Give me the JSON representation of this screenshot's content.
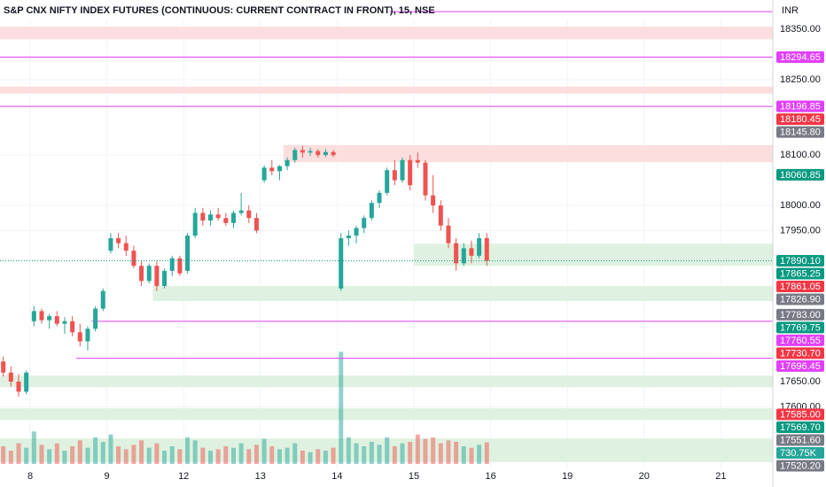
{
  "chart_data": {
    "type": "candlestick",
    "title": "S&P CNX NIFTY INDEX FUTURES (CONTINUOUS: CURRENT CONTRACT IN FRONT), 15, NSE",
    "currency": "INR",
    "ylim": [
      17480,
      18410
    ],
    "yticks": [
      {
        "value": 18350,
        "label": "18350.00"
      },
      {
        "value": 18250,
        "label": "18250.00"
      },
      {
        "value": 18100,
        "label": "18100.00"
      },
      {
        "value": 18000,
        "label": "18000.00"
      },
      {
        "value": 17950,
        "label": "17950.00"
      },
      {
        "value": 17650,
        "label": "17650.00"
      },
      {
        "value": 17600,
        "label": "17600.00"
      }
    ],
    "days": [
      "8",
      "9",
      "12",
      "13",
      "14",
      "15",
      "16",
      "19",
      "20",
      "21"
    ],
    "up_color": "#26a69a",
    "down_color": "#ef5350",
    "candles": [
      [
        17690,
        17700,
        17660,
        17668
      ],
      [
        17668,
        17680,
        17640,
        17650
      ],
      [
        17650,
        17665,
        17620,
        17630
      ],
      [
        17630,
        17672,
        17625,
        17668
      ],
      [
        17770,
        17800,
        17760,
        17790
      ],
      [
        17790,
        17795,
        17765,
        17772
      ],
      [
        17772,
        17785,
        17755,
        17780
      ],
      [
        17780,
        17790,
        17760,
        17765
      ],
      [
        17765,
        17778,
        17745,
        17770
      ],
      [
        17770,
        17780,
        17740,
        17748
      ],
      [
        17748,
        17765,
        17720,
        17730
      ],
      [
        17730,
        17760,
        17712,
        17755
      ],
      [
        17755,
        17800,
        17750,
        17795
      ],
      [
        17795,
        17835,
        17790,
        17830
      ],
      [
        17910,
        17945,
        17905,
        17935
      ],
      [
        17935,
        17945,
        17915,
        17925
      ],
      [
        17925,
        17940,
        17900,
        17910
      ],
      [
        17910,
        17920,
        17875,
        17880
      ],
      [
        17880,
        17890,
        17840,
        17850
      ],
      [
        17850,
        17885,
        17845,
        17880
      ],
      [
        17880,
        17890,
        17830,
        17840
      ],
      [
        17840,
        17875,
        17835,
        17870
      ],
      [
        17870,
        17900,
        17860,
        17895
      ],
      [
        17895,
        17900,
        17860,
        17865
      ],
      [
        17870,
        17945,
        17865,
        17940
      ],
      [
        17940,
        17995,
        17935,
        17985
      ],
      [
        17985,
        17995,
        17960,
        17970
      ],
      [
        17970,
        17990,
        17960,
        17982
      ],
      [
        17982,
        17995,
        17970,
        17975
      ],
      [
        17975,
        17985,
        17960,
        17965
      ],
      [
        17965,
        17990,
        17955,
        17985
      ],
      [
        17985,
        18025,
        17980,
        17990
      ],
      [
        17990,
        18000,
        17965,
        17975
      ],
      [
        17975,
        17985,
        17945,
        17950
      ],
      [
        18050,
        18080,
        18045,
        18075
      ],
      [
        18075,
        18090,
        18060,
        18068
      ],
      [
        18068,
        18080,
        18050,
        18078
      ],
      [
        18078,
        18095,
        18070,
        18090
      ],
      [
        18090,
        18115,
        18085,
        18110
      ],
      [
        18110,
        18118,
        18095,
        18105
      ],
      [
        18105,
        18115,
        18098,
        18108
      ],
      [
        18108,
        18112,
        18095,
        18100
      ],
      [
        18100,
        18112,
        18096,
        18106
      ],
      [
        18106,
        18110,
        18096,
        18100
      ],
      [
        17835,
        17945,
        17830,
        17935
      ],
      [
        17935,
        17950,
        17920,
        17940
      ],
      [
        17940,
        17960,
        17925,
        17955
      ],
      [
        17955,
        17980,
        17945,
        17975
      ],
      [
        17975,
        18010,
        17970,
        18005
      ],
      [
        18005,
        18030,
        17995,
        18025
      ],
      [
        18025,
        18075,
        18020,
        18070
      ],
      [
        18070,
        18090,
        18040,
        18050
      ],
      [
        18050,
        18095,
        18045,
        18090
      ],
      [
        18090,
        18100,
        18030,
        18040
      ],
      [
        18090,
        18105,
        18075,
        18085
      ],
      [
        18085,
        18090,
        18010,
        18020
      ],
      [
        18020,
        18060,
        17985,
        18000
      ],
      [
        18000,
        18010,
        17950,
        17960
      ],
      [
        17960,
        17975,
        17915,
        17925
      ],
      [
        17925,
        17935,
        17870,
        17885
      ],
      [
        17885,
        17925,
        17880,
        17915
      ],
      [
        17915,
        17930,
        17885,
        17900
      ],
      [
        17900,
        17945,
        17895,
        17935
      ],
      [
        17935,
        17945,
        17880,
        17890
      ]
    ],
    "volumes": [
      600000,
      450000,
      700000,
      550000,
      1100000,
      650000,
      500000,
      700000,
      450000,
      600000,
      800000,
      550000,
      900000,
      750000,
      1000000,
      600000,
      500000,
      650000,
      800000,
      550000,
      700000,
      450000,
      600000,
      500000,
      900000,
      800000,
      550000,
      450000,
      500000,
      600000,
      550000,
      700000,
      500000,
      650000,
      850000,
      600000,
      500000,
      550000,
      700000,
      450000,
      400000,
      500000,
      450000,
      550000,
      3800000,
      900000,
      700000,
      600000,
      750000,
      650000,
      900000,
      600000,
      700000,
      750000,
      1000000,
      850000,
      900000,
      700000,
      800000,
      750000,
      600000,
      550000,
      650000,
      730750
    ],
    "volume_ylim": [
      0,
      4500000
    ],
    "zones": [
      {
        "low": 18330,
        "high": 18355,
        "color": "#fcdede",
        "from_index": 0
      },
      {
        "low": 18222,
        "high": 18236,
        "color": "#fcdede",
        "from_index": 0
      },
      {
        "low": 18086,
        "high": 18120,
        "color": "#fcdede",
        "from_index": 37
      },
      {
        "low": 17880,
        "high": 17924,
        "color": "#dff1e0",
        "from_index": 54
      },
      {
        "low": 17810,
        "high": 17840,
        "color": "#dff1e0",
        "from_index": 20
      },
      {
        "low": 17639,
        "high": 17662,
        "color": "#dff1e0",
        "from_index": 0
      },
      {
        "low": 17574,
        "high": 17597,
        "color": "#dff1e0",
        "from_index": 0
      },
      {
        "low": 17490,
        "high": 17537,
        "color": "#dff1e0",
        "from_index": 0
      }
    ],
    "hlines": [
      {
        "value": 18385,
        "color": "#e040fb",
        "from_index": 0
      },
      {
        "value": 18294.65,
        "color": "#e040fb",
        "from_index": 0
      },
      {
        "value": 18196.85,
        "color": "#e040fb",
        "from_index": 0
      },
      {
        "value": 17769.75,
        "color": "#e040fb",
        "from_index": 12
      },
      {
        "value": 17696.45,
        "color": "#e040fb",
        "from_index": 10
      }
    ],
    "tags": [
      {
        "value": 18294.65,
        "label": "18294.65",
        "color": "#e040fb"
      },
      {
        "value": 18196.85,
        "label": "18196.85",
        "color": "#e040fb"
      },
      {
        "value": 18180.45,
        "label": "18180.45",
        "color": "#f23645"
      },
      {
        "value": 18145.8,
        "label": "18145.80",
        "color": "#787b86"
      },
      {
        "value": 18060.85,
        "label": "18060.85",
        "color": "#089981"
      },
      {
        "value": 17890.1,
        "label": "17890.10",
        "color": "#089981",
        "dotted": true
      },
      {
        "value": 17865.25,
        "label": "17865.25",
        "color": "#089981"
      },
      {
        "value": 17861.05,
        "label": "17861.05",
        "color": "#f23645"
      },
      {
        "value": 17826.9,
        "label": "17826.90",
        "color": "#787b86"
      },
      {
        "value": 17783.0,
        "label": "17783.00",
        "color": "#787b86"
      },
      {
        "value": 17769.75,
        "label": "17769.75",
        "color": "#089981"
      },
      {
        "value": 17760.55,
        "label": "17760.55",
        "color": "#e040fb"
      },
      {
        "value": 17730.7,
        "label": "17730.70",
        "color": "#f23645"
      },
      {
        "value": 17696.45,
        "label": "17696.45",
        "color": "#e040fb"
      },
      {
        "value": 17585.0,
        "label": "17585.00",
        "color": "#f23645"
      },
      {
        "value": 17569.7,
        "label": "17569.70",
        "color": "#089981"
      },
      {
        "value": 17551.6,
        "label": "17551.60",
        "color": "#787b86"
      },
      {
        "value": 730750,
        "label": "730.75K",
        "color": "#26a69a",
        "axis": "volume"
      },
      {
        "value": 17520.2,
        "label": "17520.20",
        "color": "#787b86"
      }
    ]
  }
}
